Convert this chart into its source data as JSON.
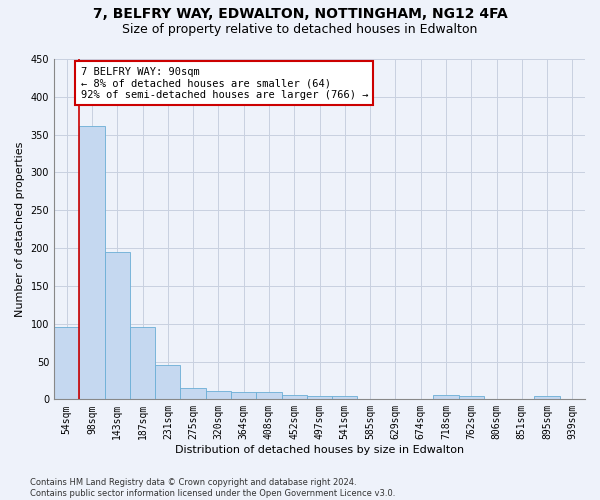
{
  "title1": "7, BELFRY WAY, EDWALTON, NOTTINGHAM, NG12 4FA",
  "title2": "Size of property relative to detached houses in Edwalton",
  "xlabel": "Distribution of detached houses by size in Edwalton",
  "ylabel": "Number of detached properties",
  "footnote": "Contains HM Land Registry data © Crown copyright and database right 2024.\nContains public sector information licensed under the Open Government Licence v3.0.",
  "bar_labels": [
    "54sqm",
    "98sqm",
    "143sqm",
    "187sqm",
    "231sqm",
    "275sqm",
    "320sqm",
    "364sqm",
    "408sqm",
    "452sqm",
    "497sqm",
    "541sqm",
    "585sqm",
    "629sqm",
    "674sqm",
    "718sqm",
    "762sqm",
    "806sqm",
    "851sqm",
    "895sqm",
    "939sqm"
  ],
  "bar_values": [
    96,
    362,
    195,
    95,
    45,
    15,
    11,
    10,
    10,
    6,
    5,
    5,
    0,
    0,
    0,
    6,
    5,
    0,
    0,
    5,
    0
  ],
  "bar_color": "#c5d8f0",
  "bar_edge_color": "#6baed6",
  "annotation_text": "7 BELFRY WAY: 90sqm\n← 8% of detached houses are smaller (64)\n92% of semi-detached houses are larger (766) →",
  "annotation_box_color": "#ffffff",
  "annotation_box_edge": "#cc0000",
  "vline_color": "#cc0000",
  "vline_x": 0.5,
  "ylim": [
    0,
    450
  ],
  "yticks": [
    0,
    50,
    100,
    150,
    200,
    250,
    300,
    350,
    400,
    450
  ],
  "bg_color": "#eef2fa",
  "plot_bg_color": "#eef2fa",
  "grid_color": "#c8d0e0",
  "title1_fontsize": 10,
  "title2_fontsize": 9,
  "axis_label_fontsize": 8,
  "tick_fontsize": 7,
  "annotation_fontsize": 7.5,
  "footnote_fontsize": 6
}
